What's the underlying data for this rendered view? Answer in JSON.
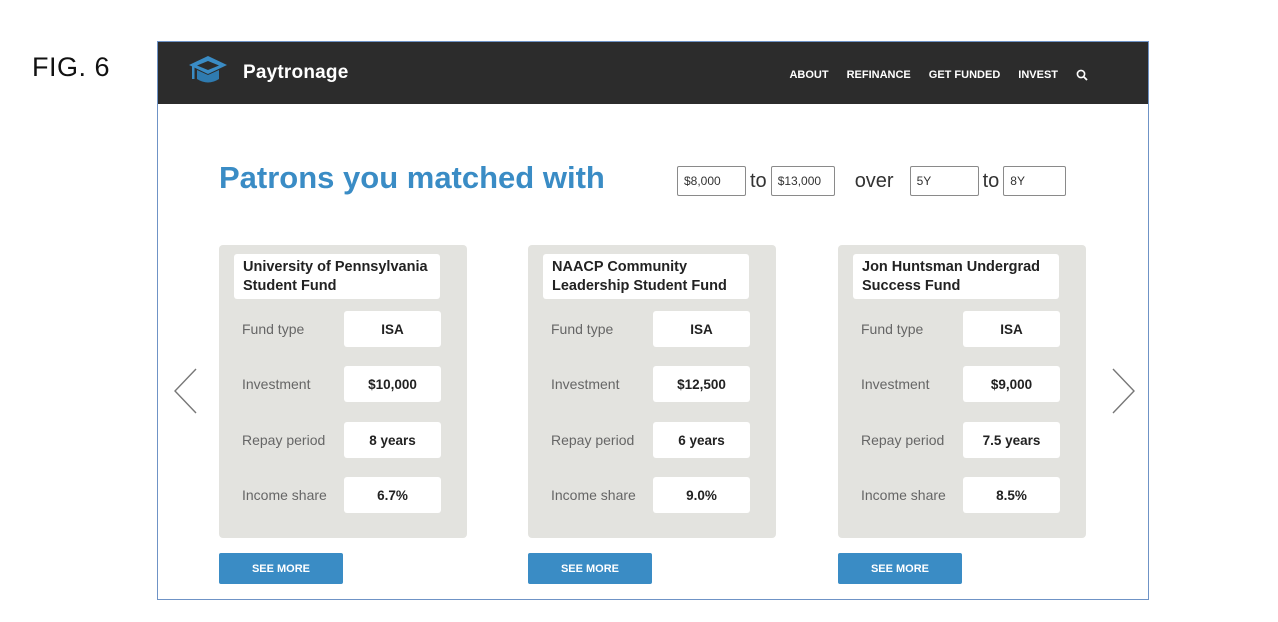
{
  "figure_label": "FIG. 6",
  "brand": {
    "name": "Paytronage",
    "logo_icon": "graduation-cap-icon",
    "logo_color": "#3a8cc5"
  },
  "nav": {
    "links": [
      "ABOUT",
      "REFINANCE",
      "GET FUNDED",
      "INVEST"
    ],
    "search_icon": "search-icon"
  },
  "heading": "Patrons you matched with",
  "filters": {
    "amount_min": "$8,000",
    "to_word_1": "to",
    "amount_max": "$13,000",
    "over_word": "over",
    "term_min": "5Y",
    "to_word_2": "to",
    "term_max": "8Y"
  },
  "cards": [
    {
      "title_line1": "University of Pennsylvania",
      "title_line2": "Student Fund",
      "rows": [
        {
          "label": "Fund type",
          "value": "ISA"
        },
        {
          "label": "Investment",
          "value": "$10,000"
        },
        {
          "label": "Repay period",
          "value": "8 years"
        },
        {
          "label": "Income share",
          "value": "6.7%"
        }
      ],
      "button": "SEE MORE"
    },
    {
      "title_line1": "NAACP Community",
      "title_line2": "Leadership Student Fund",
      "rows": [
        {
          "label": "Fund type",
          "value": "ISA"
        },
        {
          "label": "Investment",
          "value": "$12,500"
        },
        {
          "label": "Repay period",
          "value": "6 years"
        },
        {
          "label": "Income share",
          "value": "9.0%"
        }
      ],
      "button": "SEE MORE"
    },
    {
      "title_line1": "Jon Huntsman Undergrad",
      "title_line2": "Success Fund",
      "rows": [
        {
          "label": "Fund type",
          "value": "ISA"
        },
        {
          "label": "Investment",
          "value": "$9,000"
        },
        {
          "label": "Repay period",
          "value": "7.5 years"
        },
        {
          "label": "Income share",
          "value": "8.5%"
        }
      ],
      "button": "SEE MORE"
    }
  ],
  "carousel": {
    "prev_icon": "chevron-left-icon",
    "next_icon": "chevron-right-icon"
  },
  "colors": {
    "accent": "#3a8cc5",
    "navbar": "#2c2c2c",
    "card_bg": "#e3e3df",
    "frame_border": "#6f93c6"
  }
}
